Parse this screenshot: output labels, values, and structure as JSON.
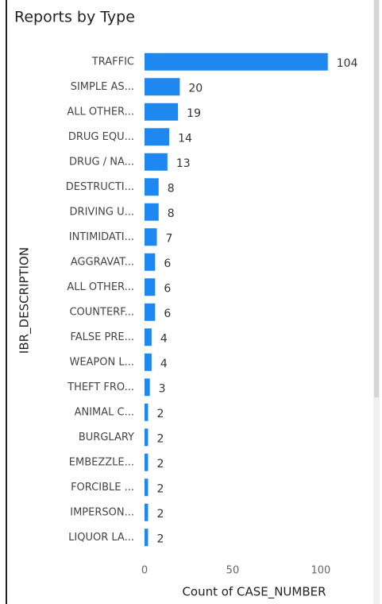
{
  "chart_data": {
    "type": "bar",
    "orientation": "horizontal",
    "title": "Reports by Type",
    "x_label": "Count of CASE_NUMBER",
    "y_label": "IBR_DESCRIPTION",
    "categories": [
      "TRAFFIC",
      "SIMPLE AS...",
      "ALL OTHER...",
      "DRUG EQU...",
      "DRUG / NA...",
      "DESTRUCTI...",
      "DRIVING U...",
      "INTIMIDATI...",
      "AGGRAVAT...",
      "ALL OTHER...",
      "COUNTERF...",
      "FALSE PRE...",
      "WEAPON L...",
      "THEFT FRO...",
      "ANIMAL C...",
      "BURGLARY",
      "EMBEZZLE...",
      "FORCIBLE ...",
      "IMPERSON...",
      "LIQUOR LA..."
    ],
    "values": [
      104,
      20,
      19,
      14,
      13,
      8,
      8,
      7,
      6,
      6,
      6,
      4,
      4,
      3,
      2,
      2,
      2,
      2,
      2,
      2
    ],
    "color": "#1f88f0",
    "xlim": [
      0,
      105
    ],
    "xticks": [
      0,
      50,
      100
    ],
    "grid": false
  }
}
